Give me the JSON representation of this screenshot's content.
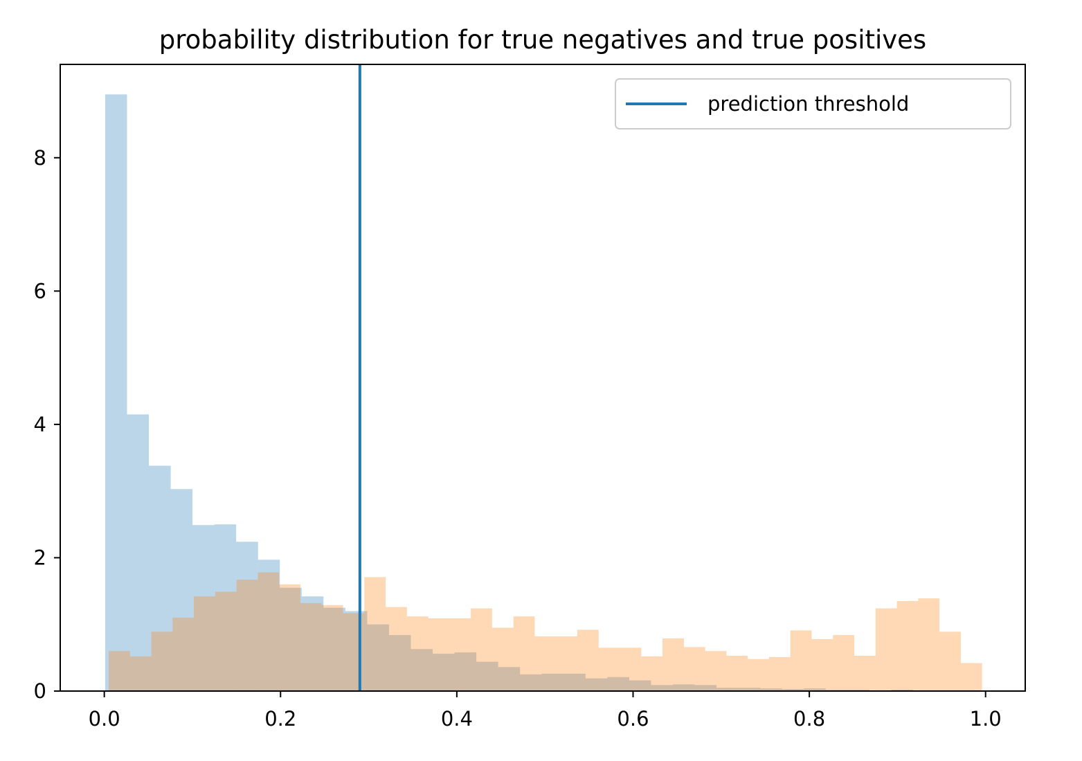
{
  "chart_data": {
    "type": "bar",
    "title": "probability distribution for true negatives and true positives",
    "xlabel": "",
    "ylabel": "",
    "xlim": [
      -0.05,
      1.045
    ],
    "ylim": [
      0,
      9.4
    ],
    "x_ticks": [
      "0.0",
      "0.2",
      "0.4",
      "0.6",
      "0.8",
      "1.0"
    ],
    "y_ticks": [
      "0",
      "2",
      "4",
      "6",
      "8"
    ],
    "legend": {
      "position": "top-right",
      "entries": [
        "prediction threshold"
      ]
    },
    "threshold": {
      "name": "prediction threshold",
      "x": 0.29,
      "color": "#1f77b4"
    },
    "series": [
      {
        "color": "#1f77b4",
        "opacity": 0.3,
        "range": [
          0.001,
          0.992
        ],
        "values": [
          8.95,
          4.15,
          3.38,
          3.03,
          2.49,
          2.5,
          2.24,
          1.97,
          1.55,
          1.42,
          1.25,
          1.2,
          1.0,
          0.84,
          0.63,
          0.56,
          0.58,
          0.44,
          0.36,
          0.25,
          0.26,
          0.26,
          0.19,
          0.21,
          0.16,
          0.09,
          0.1,
          0.09,
          0.05,
          0.05,
          0.04,
          0.03,
          0.04,
          0.02,
          0.02,
          0.01,
          0.02,
          0.01,
          0.01,
          0.01
        ]
      },
      {
        "color": "#ff7f0e",
        "opacity": 0.3,
        "range": [
          0.005,
          0.996
        ],
        "values": [
          0.6,
          0.52,
          0.89,
          1.1,
          1.42,
          1.49,
          1.67,
          1.78,
          1.6,
          1.32,
          1.29,
          1.17,
          1.71,
          1.26,
          1.12,
          1.09,
          1.09,
          1.24,
          0.95,
          1.12,
          0.82,
          0.82,
          0.92,
          0.65,
          0.65,
          0.52,
          0.79,
          0.66,
          0.6,
          0.53,
          0.48,
          0.51,
          0.91,
          0.78,
          0.84,
          0.53,
          1.24,
          1.35,
          1.39,
          0.89,
          0.42
        ]
      }
    ]
  }
}
